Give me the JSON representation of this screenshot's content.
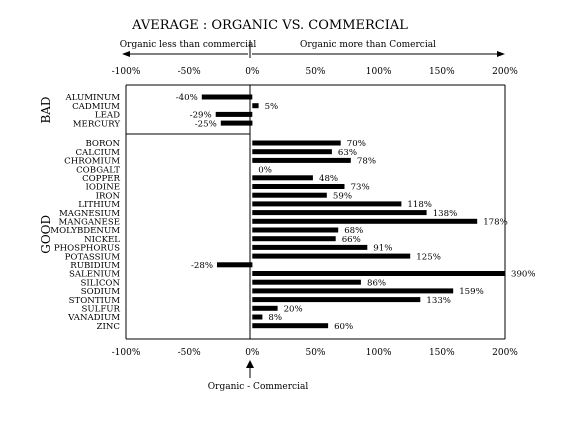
{
  "chart_data": {
    "type": "bar",
    "orientation": "horizontal",
    "title": "AVERAGE : ORGANIC VS. COMMERCIAL",
    "xlim": [
      -100,
      200
    ],
    "ticks": [
      "-100%",
      "-50%",
      "0%",
      "50%",
      "100%",
      "150%",
      "200%"
    ],
    "tick_values": [
      -100,
      -50,
      0,
      50,
      100,
      150,
      200
    ],
    "left_arrow_label": "Organic less than commercial",
    "right_arrow_label": "Organic more than Comercial",
    "bottom_label": "Organic - Commercial",
    "grid": false,
    "groups": [
      {
        "name": "BAD",
        "items": [
          {
            "label": "ALUMINUM",
            "value": -40,
            "value_label": "-40%"
          },
          {
            "label": "CADMIUM",
            "value": 5,
            "value_label": "5%"
          },
          {
            "label": "LEAD",
            "value": -29,
            "value_label": "-29%"
          },
          {
            "label": "MERCURY",
            "value": -25,
            "value_label": "-25%"
          }
        ]
      },
      {
        "name": "GOOD",
        "items": [
          {
            "label": "BORON",
            "value": 70,
            "value_label": "70%"
          },
          {
            "label": "CALCIUM",
            "value": 63,
            "value_label": "63%"
          },
          {
            "label": "CHROMIUM",
            "value": 78,
            "value_label": "78%"
          },
          {
            "label": "COBGALT",
            "value": 0,
            "value_label": "0%"
          },
          {
            "label": "COPPER",
            "value": 48,
            "value_label": "48%"
          },
          {
            "label": "IODINE",
            "value": 73,
            "value_label": "73%"
          },
          {
            "label": "IRON",
            "value": 59,
            "value_label": "59%"
          },
          {
            "label": "LITHIUM",
            "value": 118,
            "value_label": "118%"
          },
          {
            "label": "MAGNESIUM",
            "value": 138,
            "value_label": "138%"
          },
          {
            "label": "MANGANESE",
            "value": 178,
            "value_label": "178%"
          },
          {
            "label": "MOLYBDENUM",
            "value": 68,
            "value_label": "68%"
          },
          {
            "label": "NICKEL",
            "value": 66,
            "value_label": "66%"
          },
          {
            "label": "PHOSPHORUS",
            "value": 91,
            "value_label": "91%"
          },
          {
            "label": "POTASSIUM",
            "value": 125,
            "value_label": "125%"
          },
          {
            "label": "RUBIDIUM",
            "value": -28,
            "value_label": "-28%"
          },
          {
            "label": "SALENIUM",
            "value": 390,
            "value_label": "390%"
          },
          {
            "label": "SILICON",
            "value": 86,
            "value_label": "86%"
          },
          {
            "label": "SODIUM",
            "value": 159,
            "value_label": "159%"
          },
          {
            "label": "STONTIUM",
            "value": 133,
            "value_label": "133%"
          },
          {
            "label": "SULFUR",
            "value": 20,
            "value_label": "20%"
          },
          {
            "label": "VANADIUM",
            "value": 8,
            "value_label": "8%"
          },
          {
            "label": "ZINC",
            "value": 60,
            "value_label": "60%"
          }
        ]
      }
    ],
    "colors": {
      "bar": "#000000",
      "axis": "#000000",
      "background": "#ffffff"
    }
  }
}
